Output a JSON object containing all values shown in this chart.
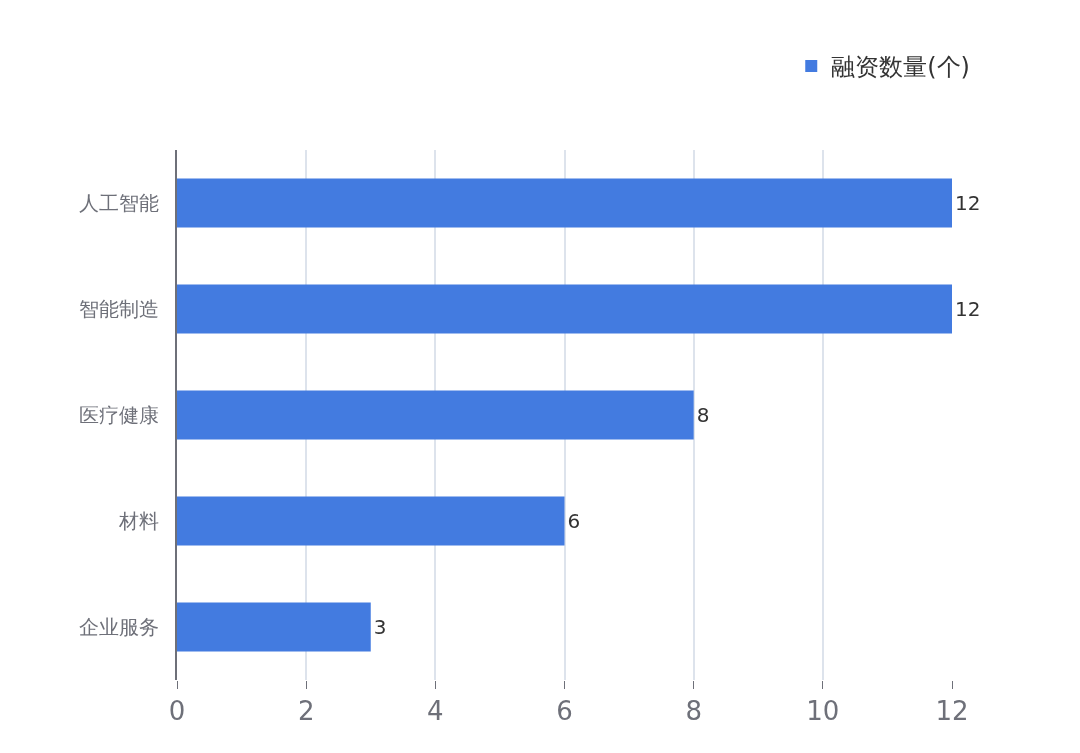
{
  "chart_data": {
    "type": "bar",
    "orientation": "horizontal",
    "categories": [
      "人工智能",
      "智能制造",
      "医疗健康",
      "材料",
      "企业服务"
    ],
    "series": [
      {
        "name": "融资数量(个)",
        "color": "#437be0",
        "values": [
          12,
          12,
          8,
          6,
          3
        ]
      }
    ],
    "xlim": [
      0,
      12
    ],
    "xticks": [
      0,
      2,
      4,
      6,
      8,
      10,
      12
    ],
    "grid": "x",
    "legend": "top right",
    "data_labels": true
  }
}
